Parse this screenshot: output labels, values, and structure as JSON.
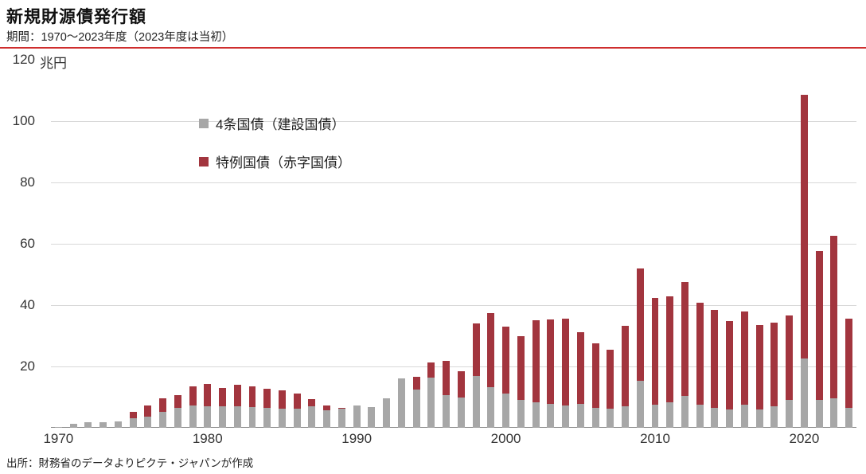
{
  "header": {
    "title": "新規財源債発行額",
    "subtitle": "期間：1970〜2023年度（2023年度は当初）",
    "unit_label": "兆円"
  },
  "source": "出所：財務省のデータよりピクテ・ジャパンが作成",
  "colors": {
    "construction_bond": "#a7a7a7",
    "special_bond": "#a2353e",
    "divider": "#cf2e2e"
  },
  "chart_data": {
    "type": "bar",
    "stacked": true,
    "title": "新規財源債発行額",
    "unit": "兆円",
    "ylim": [
      0,
      120
    ],
    "yticks": [
      20,
      40,
      60,
      80,
      100,
      120
    ],
    "xticks": [
      1970,
      1980,
      1990,
      2000,
      2010,
      2020
    ],
    "grid": true,
    "legend_position": "upper-left-inside",
    "years": [
      1970,
      1971,
      1972,
      1973,
      1974,
      1975,
      1976,
      1977,
      1978,
      1979,
      1980,
      1981,
      1982,
      1983,
      1984,
      1985,
      1986,
      1987,
      1988,
      1989,
      1990,
      1991,
      1992,
      1993,
      1994,
      1995,
      1996,
      1997,
      1998,
      1999,
      2000,
      2001,
      2002,
      2003,
      2004,
      2005,
      2006,
      2007,
      2008,
      2009,
      2010,
      2011,
      2012,
      2013,
      2014,
      2015,
      2016,
      2017,
      2018,
      2019,
      2020,
      2021,
      2022,
      2023
    ],
    "series": [
      {
        "name": "4条国債（建設国債）",
        "color": "#a7a7a7",
        "values": [
          0.3,
          1.2,
          1.9,
          1.8,
          2.2,
          3.2,
          3.7,
          5.1,
          6.4,
          7.2,
          7.0,
          7.0,
          7.0,
          6.7,
          6.4,
          6.3,
          6.3,
          6.9,
          5.7,
          6.4,
          7.3,
          6.7,
          9.5,
          16.2,
          12.4,
          16.4,
          10.7,
          9.9,
          17.0,
          13.2,
          11.1,
          9.1,
          8.3,
          7.7,
          7.4,
          7.7,
          6.4,
          6.2,
          7.1,
          15.3,
          7.6,
          8.4,
          10.5,
          7.6,
          6.5,
          6.0,
          7.5,
          6.1,
          6.9,
          9.1,
          22.6,
          9.2,
          9.6,
          6.6
        ]
      },
      {
        "name": "特例国債（赤字国債）",
        "color": "#a2353e",
        "values": [
          0,
          0,
          0,
          0,
          0,
          2.1,
          3.5,
          4.5,
          4.3,
          6.3,
          7.2,
          5.9,
          7.0,
          6.8,
          6.4,
          6.0,
          5.0,
          2.5,
          1.5,
          0.2,
          0,
          0,
          0,
          0,
          4.1,
          4.8,
          11.0,
          8.5,
          17.0,
          24.3,
          21.9,
          20.9,
          26.7,
          27.6,
          28.1,
          23.5,
          21.1,
          19.2,
          26.1,
          36.7,
          34.7,
          34.4,
          37.0,
          33.3,
          32.0,
          28.9,
          30.5,
          27.5,
          27.5,
          27.5,
          86.0,
          48.5,
          52.9,
          29.1
        ]
      }
    ]
  }
}
